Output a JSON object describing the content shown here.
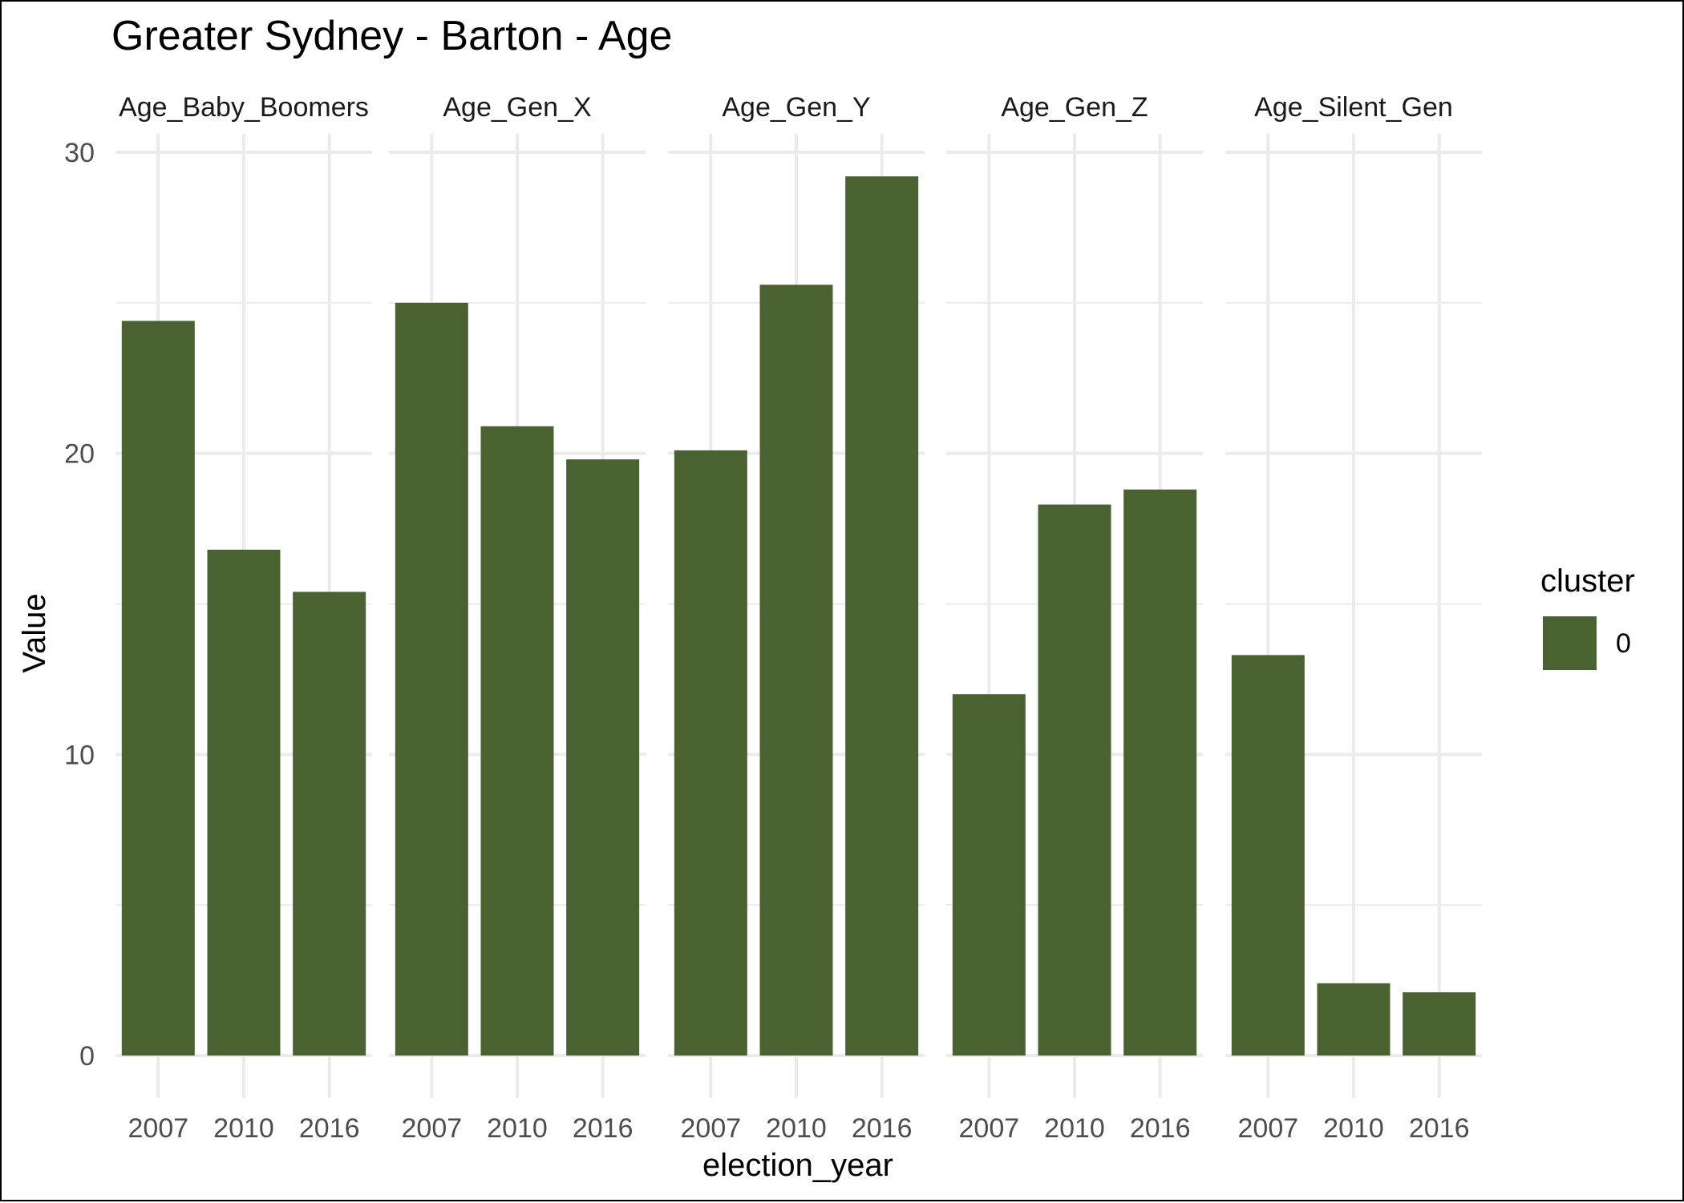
{
  "chart_data": {
    "type": "bar",
    "title": "Greater Sydney - Barton - Age",
    "xlabel": "election_year",
    "ylabel": "Value",
    "ylim": [
      0,
      30
    ],
    "yticks": [
      0,
      10,
      20,
      30
    ],
    "categories": [
      "2007",
      "2010",
      "2016"
    ],
    "grid": true,
    "legend": {
      "title": "cluster",
      "placement": "right",
      "entries": [
        "0"
      ]
    },
    "colors": {
      "bar": "#4a6132",
      "grid": "#ebebeb",
      "text": "#4d4d4d"
    },
    "facets": [
      {
        "name": "Age_Baby_Boomers",
        "values": [
          24.4,
          16.8,
          15.4
        ]
      },
      {
        "name": "Age_Gen_X",
        "values": [
          25.0,
          20.9,
          19.8
        ]
      },
      {
        "name": "Age_Gen_Y",
        "values": [
          20.1,
          25.6,
          29.2
        ]
      },
      {
        "name": "Age_Gen_Z",
        "values": [
          12.0,
          18.3,
          18.8
        ]
      },
      {
        "name": "Age_Silent_Gen",
        "values": [
          13.3,
          2.4,
          2.1
        ]
      }
    ]
  }
}
